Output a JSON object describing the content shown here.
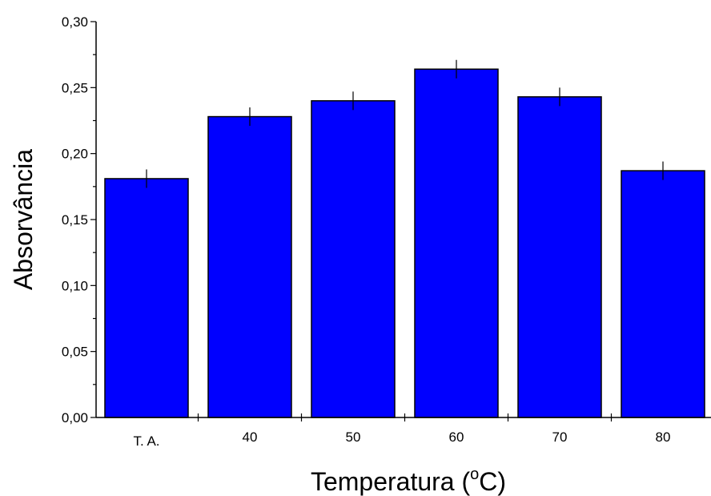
{
  "chart_data": {
    "type": "bar",
    "categories": [
      "T. A.",
      "40",
      "50",
      "60",
      "70",
      "80"
    ],
    "values": [
      0.181,
      0.228,
      0.24,
      0.264,
      0.243,
      0.187
    ],
    "errors": [
      0.007,
      0.007,
      0.007,
      0.007,
      0.007,
      0.007
    ],
    "xlabel": "Temperatura (",
    "xlabel_superscript": "o",
    "xlabel_suffix": "C)",
    "ylabel": "Absorvância",
    "ylim": [
      0,
      0.3
    ],
    "yticks": [
      "0,00",
      "0,05",
      "0,10",
      "0,15",
      "0,20",
      "0,25",
      "0,30"
    ],
    "grid": false,
    "colors": {
      "bar": "#0000ff",
      "outline": "#000000"
    }
  }
}
